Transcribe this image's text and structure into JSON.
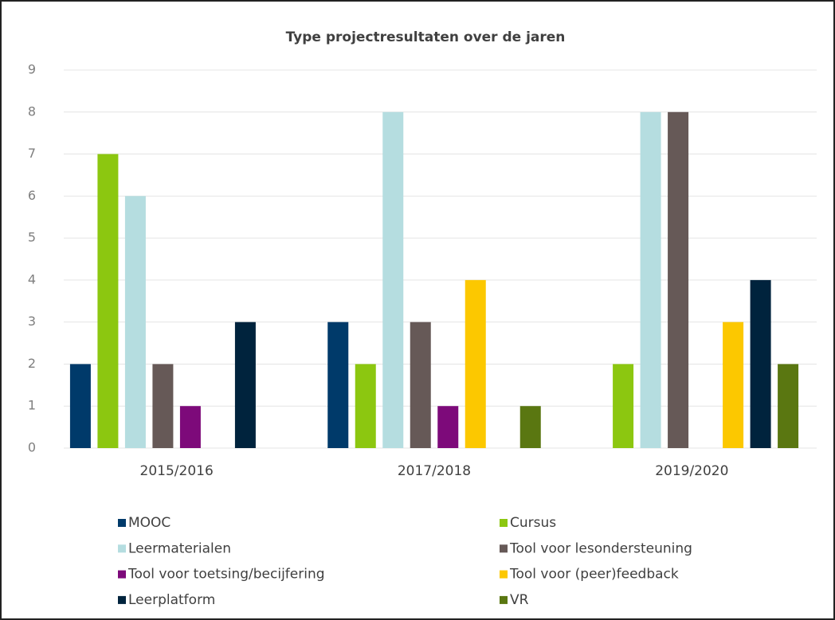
{
  "chart_data": {
    "type": "bar",
    "title": "Type projectresultaten over de jaren",
    "categories": [
      "2015/2016",
      "2017/2018",
      "2019/2020"
    ],
    "series": [
      {
        "name": "MOOC",
        "color": "#003a6a",
        "values": [
          2,
          3,
          0
        ]
      },
      {
        "name": "Cursus",
        "color": "#8cc710",
        "values": [
          7,
          2,
          2
        ]
      },
      {
        "name": "Leermaterialen",
        "color": "#b5dde0",
        "values": [
          6,
          8,
          8
        ]
      },
      {
        "name": "Tool voor lesondersteuning",
        "color": "#665957",
        "values": [
          2,
          3,
          8
        ]
      },
      {
        "name": "Tool voor toetsing/becijfering",
        "color": "#7d0a7a",
        "values": [
          1,
          1,
          0
        ]
      },
      {
        "name": "Tool voor (peer)feedback",
        "color": "#fcc800",
        "values": [
          0,
          4,
          3
        ]
      },
      {
        "name": "Leerplatform",
        "color": "#00233d",
        "values": [
          3,
          0,
          4
        ]
      },
      {
        "name": "VR",
        "color": "#5a7711",
        "values": [
          0,
          1,
          2
        ]
      }
    ],
    "ylim": [
      0,
      9
    ],
    "yticks": [
      0,
      1,
      2,
      3,
      4,
      5,
      6,
      7,
      8,
      9
    ],
    "grid": true,
    "legend": "bottom"
  }
}
